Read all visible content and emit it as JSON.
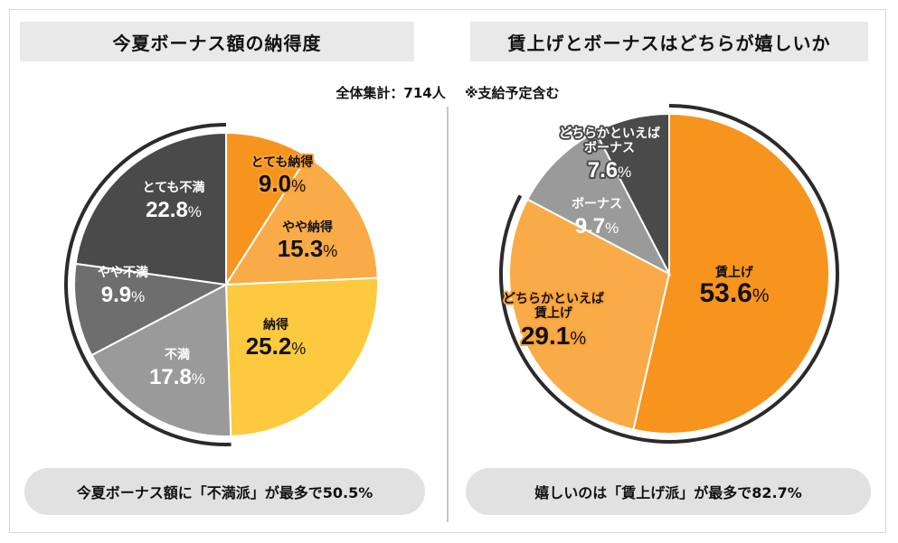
{
  "panels": {
    "left_title": "今夏ボーナス額の納得度",
    "right_title": "賃上げとボーナスはどちらが嬉しいか"
  },
  "subtitle": {
    "total": "全体集計：714人",
    "note": "※支給予定含む"
  },
  "summaries": {
    "left": "今夏ボーナス額に「不満派」が最多で50.5%",
    "right": "嬉しいのは「賃上げ派」が最多で82.7%"
  },
  "chart_data": [
    {
      "type": "pie",
      "title": "今夏ボーナス額の納得度",
      "slices": [
        {
          "label": "とても納得",
          "value": 9.0,
          "display": "9.0%",
          "color": "#f7941d"
        },
        {
          "label": "やや納得",
          "value": 15.3,
          "display": "15.3%",
          "color": "#f9ab48"
        },
        {
          "label": "納得",
          "value": 25.2,
          "display": "25.2%",
          "color": "#fdc93e"
        },
        {
          "label": "不満",
          "value": 17.8,
          "display": "17.8%",
          "color": "#9a9a9a"
        },
        {
          "label": "やや不満",
          "value": 9.9,
          "display": "9.9%",
          "color": "#6e6e6e"
        },
        {
          "label": "とても不満",
          "value": 22.8,
          "display": "22.8%",
          "color": "#4a4a4a"
        }
      ],
      "highlight_group": {
        "labels": [
          "不満",
          "やや不満",
          "とても不満"
        ],
        "total": 50.5
      }
    },
    {
      "type": "pie",
      "title": "賃上げとボーナスはどちらが嬉しいか",
      "slices": [
        {
          "label": "賃上げ",
          "value": 53.6,
          "display": "53.6%",
          "color": "#f7941d"
        },
        {
          "label": "どちらかといえば賃上げ",
          "value": 29.1,
          "display": "29.1%",
          "color": "#f9ab48"
        },
        {
          "label": "ボーナス",
          "value": 9.7,
          "display": "9.7%",
          "color": "#9a9a9a"
        },
        {
          "label": "どちらかといえばボーナス",
          "value": 7.6,
          "display": "7.6%",
          "color": "#4a4a4a"
        }
      ],
      "highlight_group": {
        "labels": [
          "賃上げ",
          "どちらかといえば賃上げ"
        ],
        "total": 82.7
      }
    }
  ]
}
